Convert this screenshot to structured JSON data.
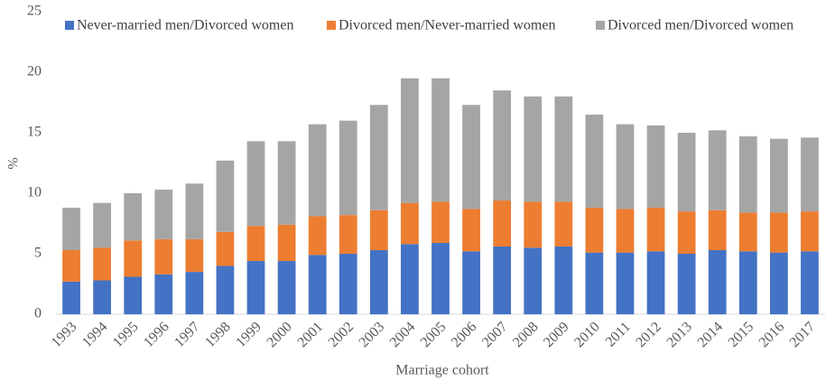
{
  "chart_data": {
    "type": "stacked_bar",
    "x_label": "Marriage cohort",
    "y_label": "%",
    "categories": [
      "1993",
      "1994",
      "1995",
      "1996",
      "1997",
      "1998",
      "1999",
      "2000",
      "2001",
      "2002",
      "2003",
      "2004",
      "2005",
      "2006",
      "2007",
      "2008",
      "2009",
      "2010",
      "2011",
      "2012",
      "2013",
      "2014",
      "2015",
      "2016",
      "2017"
    ],
    "series": [
      {
        "name": "Never-married men/Divorced women",
        "color": "#4472c4",
        "values": [
          2.7,
          2.8,
          3.1,
          3.3,
          3.5,
          4.0,
          4.4,
          4.4,
          4.9,
          5.0,
          5.3,
          5.8,
          5.9,
          5.2,
          5.6,
          5.5,
          5.6,
          5.1,
          5.1,
          5.2,
          5.0,
          5.3,
          5.2,
          5.1,
          5.2
        ]
      },
      {
        "name": "Divorced men/Never-married women",
        "color": "#ed7d31",
        "values": [
          2.6,
          2.7,
          3.0,
          2.9,
          2.7,
          2.8,
          2.9,
          3.0,
          3.2,
          3.2,
          3.3,
          3.4,
          3.4,
          3.5,
          3.8,
          3.8,
          3.7,
          3.7,
          3.6,
          3.6,
          3.5,
          3.3,
          3.2,
          3.3,
          3.3
        ]
      },
      {
        "name": "Divorced men/Divorced women",
        "color": "#a5a5a5",
        "values": [
          3.5,
          3.7,
          3.9,
          4.1,
          4.6,
          5.9,
          7.0,
          6.9,
          7.6,
          7.8,
          8.7,
          10.3,
          10.2,
          8.6,
          9.1,
          8.7,
          8.7,
          7.7,
          7.0,
          6.8,
          6.5,
          6.6,
          6.3,
          6.1,
          6.1
        ]
      }
    ],
    "ylim": [
      0,
      25
    ],
    "yticks": [
      0,
      5,
      10,
      15,
      20,
      25
    ]
  }
}
